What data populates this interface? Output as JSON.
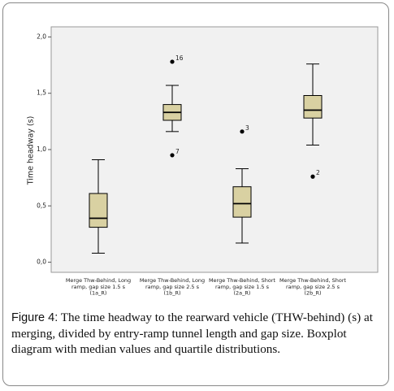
{
  "chart_data": {
    "type": "boxplot",
    "ylabel": "Time headway (s)",
    "categories": [
      [
        "Merge Thw-Behind, Long",
        "ramp, gap size 1.5 s",
        "(1a_R)"
      ],
      [
        "Merge Thw-Behind, Long",
        "ramp, gap size 2.5 s",
        "(1b_R)"
      ],
      [
        "Merge Thw-Behind, Short",
        "ramp, gap size 1.5 s",
        "(2a_R)"
      ],
      [
        "Merge Thw-Behind, Short",
        "ramp, gap size 2.5 s",
        "(2b_R)"
      ]
    ],
    "boxes": [
      {
        "whislo": 0.08,
        "q1": 0.31,
        "median": 0.39,
        "q3": 0.61,
        "whishi": 0.91,
        "outliers": []
      },
      {
        "whislo": 1.16,
        "q1": 1.26,
        "median": 1.33,
        "q3": 1.4,
        "whishi": 1.57,
        "outliers": [
          {
            "value": 1.78,
            "label": "16"
          },
          {
            "value": 0.95,
            "label": "7"
          }
        ]
      },
      {
        "whislo": 0.17,
        "q1": 0.4,
        "median": 0.52,
        "q3": 0.67,
        "whishi": 0.83,
        "outliers": [
          {
            "value": 1.16,
            "label": "3"
          }
        ]
      },
      {
        "whislo": 1.04,
        "q1": 1.28,
        "median": 1.35,
        "q3": 1.48,
        "whishi": 1.76,
        "outliers": [
          {
            "value": 0.76,
            "label": "2"
          }
        ]
      }
    ],
    "color": "#d9d1a2",
    "ylim": [
      -0.09,
      2.09
    ],
    "yticks": [
      {
        "value": 0,
        "label": "0,0"
      },
      {
        "value": 0.5,
        "label": "0,5"
      },
      {
        "value": 1,
        "label": "1,0"
      },
      {
        "value": 1.5,
        "label": "1,5"
      },
      {
        "value": 2,
        "label": "2,0"
      }
    ]
  },
  "caption": {
    "label": "Figure 4:",
    "text": "The time headway to the rearward vehicle (THW-behind) (s) at merging, divided by entry-ramp tunnel length and gap size. Boxplot diagram with median values and quartile distributions."
  }
}
